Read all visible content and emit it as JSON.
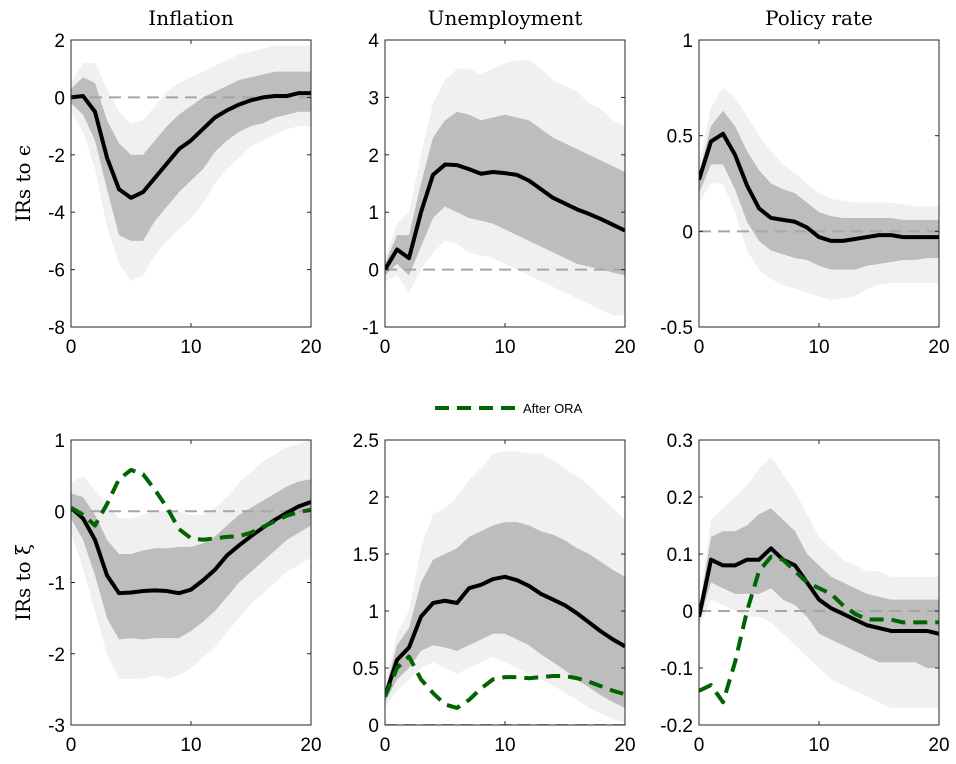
{
  "chart_data": [
    {
      "type": "line",
      "title": "Inflation",
      "ylabel": "IRs to ϵ",
      "x": [
        0,
        1,
        2,
        3,
        4,
        5,
        6,
        7,
        8,
        9,
        10,
        11,
        12,
        13,
        14,
        15,
        16,
        17,
        18,
        19,
        20
      ],
      "xlim": [
        0,
        20
      ],
      "xticks": [
        0,
        10,
        20
      ],
      "ylim": [
        -8,
        2
      ],
      "yticks": [
        -8,
        -6,
        -4,
        -2,
        0,
        2
      ],
      "hline": 0,
      "bands": [
        {
          "color": "#f0f0f0",
          "lower": [
            -0.5,
            -1.2,
            -2.5,
            -4.5,
            -5.8,
            -6.4,
            -6.2,
            -5.5,
            -5.0,
            -4.6,
            -4.2,
            -3.7,
            -3.0,
            -2.5,
            -2.1,
            -1.7,
            -1.5,
            -1.3,
            -1.1,
            -1.0,
            -1.0
          ],
          "upper": [
            0.5,
            1.2,
            1.2,
            0.3,
            -0.5,
            -0.9,
            -0.8,
            -0.3,
            0.2,
            0.5,
            0.7,
            0.9,
            1.1,
            1.3,
            1.5,
            1.6,
            1.7,
            1.8,
            1.8,
            1.8,
            1.8
          ]
        },
        {
          "color": "#bdbdbd",
          "lower": [
            -0.2,
            -0.6,
            -1.5,
            -3.2,
            -4.8,
            -5.0,
            -5.0,
            -4.3,
            -3.8,
            -3.3,
            -2.9,
            -2.5,
            -1.9,
            -1.5,
            -1.2,
            -1.0,
            -0.9,
            -0.7,
            -0.6,
            -0.5,
            -0.5
          ],
          "upper": [
            0.3,
            0.7,
            0.5,
            -0.8,
            -1.6,
            -2.0,
            -2.0,
            -1.5,
            -1.0,
            -0.6,
            -0.3,
            0,
            0.2,
            0.4,
            0.6,
            0.7,
            0.8,
            0.9,
            0.9,
            0.9,
            0.9
          ]
        }
      ],
      "series": [
        {
          "color": "#000000",
          "values": [
            0,
            0.05,
            -0.5,
            -2.1,
            -3.2,
            -3.5,
            -3.3,
            -2.8,
            -2.3,
            -1.8,
            -1.5,
            -1.1,
            -0.7,
            -0.45,
            -0.25,
            -0.1,
            0,
            0.05,
            0.05,
            0.15,
            0.15
          ]
        }
      ]
    },
    {
      "type": "line",
      "title": "Unemployment",
      "x": [
        0,
        1,
        2,
        3,
        4,
        5,
        6,
        7,
        8,
        9,
        10,
        11,
        12,
        13,
        14,
        15,
        16,
        17,
        18,
        19,
        20
      ],
      "xlim": [
        0,
        20
      ],
      "xticks": [
        0,
        10,
        20
      ],
      "ylim": [
        -1,
        4
      ],
      "yticks": [
        -1,
        0,
        1,
        2,
        3,
        4
      ],
      "hline": 0,
      "bands": [
        {
          "color": "#f0f0f0",
          "lower": [
            -0.2,
            -0.1,
            -0.4,
            0,
            0.3,
            0.5,
            0.45,
            0.3,
            0.25,
            0.2,
            0.1,
            0,
            -0.1,
            -0.2,
            -0.3,
            -0.4,
            -0.5,
            -0.6,
            -0.7,
            -0.8,
            -0.8
          ],
          "upper": [
            0.2,
            0.8,
            1.0,
            2.0,
            2.9,
            3.3,
            3.5,
            3.5,
            3.4,
            3.5,
            3.6,
            3.65,
            3.65,
            3.5,
            3.3,
            3.2,
            3.1,
            2.9,
            2.8,
            2.6,
            2.5
          ]
        },
        {
          "color": "#bdbdbd",
          "lower": [
            -0.1,
            0.1,
            -0.1,
            0.4,
            0.9,
            1.1,
            1.0,
            0.9,
            0.85,
            0.8,
            0.7,
            0.6,
            0.5,
            0.4,
            0.3,
            0.2,
            0.1,
            0.05,
            0,
            -0.05,
            -0.1
          ],
          "upper": [
            0.1,
            0.6,
            0.6,
            1.5,
            2.3,
            2.6,
            2.75,
            2.7,
            2.6,
            2.65,
            2.7,
            2.65,
            2.6,
            2.45,
            2.3,
            2.2,
            2.1,
            2.0,
            1.9,
            1.8,
            1.7
          ]
        }
      ],
      "series": [
        {
          "color": "#000000",
          "values": [
            0,
            0.35,
            0.2,
            1.0,
            1.65,
            1.83,
            1.82,
            1.75,
            1.67,
            1.7,
            1.68,
            1.65,
            1.55,
            1.4,
            1.25,
            1.15,
            1.05,
            0.97,
            0.88,
            0.78,
            0.68
          ]
        }
      ]
    },
    {
      "type": "line",
      "title": "Policy rate",
      "x": [
        0,
        1,
        2,
        3,
        4,
        5,
        6,
        7,
        8,
        9,
        10,
        11,
        12,
        13,
        14,
        15,
        16,
        17,
        18,
        19,
        20
      ],
      "xlim": [
        0,
        20
      ],
      "xticks": [
        0,
        10,
        20
      ],
      "ylim": [
        -0.5,
        1
      ],
      "yticks": [
        -0.5,
        0,
        0.5,
        1
      ],
      "hline": 0,
      "bands": [
        {
          "color": "#f0f0f0",
          "lower": [
            0.15,
            0.25,
            0.25,
            0.1,
            -0.1,
            -0.2,
            -0.25,
            -0.28,
            -0.3,
            -0.32,
            -0.34,
            -0.36,
            -0.35,
            -0.34,
            -0.3,
            -0.28,
            -0.27,
            -0.27,
            -0.27,
            -0.27,
            -0.27
          ],
          "upper": [
            0.35,
            0.65,
            0.75,
            0.7,
            0.6,
            0.5,
            0.42,
            0.35,
            0.3,
            0.25,
            0.2,
            0.17,
            0.16,
            0.15,
            0.15,
            0.15,
            0.15,
            0.14,
            0.13,
            0.13,
            0.13
          ]
        },
        {
          "color": "#bdbdbd",
          "lower": [
            0.2,
            0.35,
            0.35,
            0.22,
            0.05,
            -0.05,
            -0.1,
            -0.12,
            -0.14,
            -0.15,
            -0.18,
            -0.2,
            -0.2,
            -0.2,
            -0.18,
            -0.17,
            -0.16,
            -0.15,
            -0.15,
            -0.14,
            -0.14
          ],
          "upper": [
            0.3,
            0.55,
            0.63,
            0.55,
            0.42,
            0.32,
            0.25,
            0.22,
            0.2,
            0.15,
            0.1,
            0.08,
            0.07,
            0.07,
            0.07,
            0.07,
            0.07,
            0.06,
            0.06,
            0.06,
            0.06
          ]
        }
      ],
      "series": [
        {
          "color": "#000000",
          "values": [
            0.27,
            0.47,
            0.51,
            0.4,
            0.24,
            0.12,
            0.07,
            0.06,
            0.05,
            0.02,
            -0.03,
            -0.05,
            -0.05,
            -0.04,
            -0.03,
            -0.02,
            -0.02,
            -0.03,
            -0.03,
            -0.03,
            -0.03
          ]
        }
      ]
    },
    {
      "type": "line",
      "ylabel": "IRs to ξ",
      "x": [
        0,
        1,
        2,
        3,
        4,
        5,
        6,
        7,
        8,
        9,
        10,
        11,
        12,
        13,
        14,
        15,
        16,
        17,
        18,
        19,
        20
      ],
      "xlim": [
        0,
        20
      ],
      "xticks": [
        0,
        10,
        20
      ],
      "ylim": [
        -3,
        1
      ],
      "yticks": [
        -3,
        -2,
        -1,
        0,
        1
      ],
      "hline": 0,
      "bands": [
        {
          "color": "#f0f0f0",
          "lower": [
            -0.3,
            -0.8,
            -1.4,
            -2.0,
            -2.35,
            -2.35,
            -2.35,
            -2.3,
            -2.35,
            -2.3,
            -2.2,
            -2.05,
            -1.9,
            -1.7,
            -1.5,
            -1.3,
            -1.15,
            -1.0,
            -0.85,
            -0.75,
            -0.65
          ],
          "upper": [
            0.4,
            0.5,
            0.3,
            0.1,
            -0.1,
            -0.1,
            -0.05,
            0,
            0,
            0,
            -0.05,
            -0.05,
            0.05,
            0.2,
            0.4,
            0.55,
            0.7,
            0.8,
            0.9,
            0.95,
            1.0
          ]
        },
        {
          "color": "#bdbdbd",
          "lower": [
            -0.1,
            -0.4,
            -0.9,
            -1.5,
            -1.8,
            -1.78,
            -1.8,
            -1.78,
            -1.78,
            -1.78,
            -1.68,
            -1.55,
            -1.4,
            -1.2,
            -1.0,
            -0.85,
            -0.7,
            -0.55,
            -0.4,
            -0.3,
            -0.2
          ],
          "upper": [
            0.25,
            0.2,
            -0.05,
            -0.4,
            -0.6,
            -0.6,
            -0.55,
            -0.52,
            -0.52,
            -0.5,
            -0.5,
            -0.45,
            -0.35,
            -0.2,
            -0.05,
            0.05,
            0.15,
            0.25,
            0.35,
            0.42,
            0.45
          ]
        }
      ],
      "series": [
        {
          "color": "#000000",
          "values": [
            0.05,
            -0.1,
            -0.4,
            -0.9,
            -1.15,
            -1.14,
            -1.12,
            -1.11,
            -1.12,
            -1.15,
            -1.1,
            -0.97,
            -0.82,
            -0.62,
            -0.48,
            -0.35,
            -0.23,
            -0.12,
            -0.02,
            0.07,
            0.13
          ]
        },
        {
          "color": "#006400",
          "dashed": true,
          "values": [
            0.05,
            -0.05,
            -0.2,
            0.1,
            0.45,
            0.58,
            0.52,
            0.3,
            0.05,
            -0.25,
            -0.38,
            -0.4,
            -0.38,
            -0.36,
            -0.35,
            -0.3,
            -0.22,
            -0.14,
            -0.06,
            -0.01,
            0.02
          ]
        }
      ]
    },
    {
      "type": "line",
      "x": [
        0,
        1,
        2,
        3,
        4,
        5,
        6,
        7,
        8,
        9,
        10,
        11,
        12,
        13,
        14,
        15,
        16,
        17,
        18,
        19,
        20
      ],
      "xlim": [
        0,
        20
      ],
      "xticks": [
        0,
        10,
        20
      ],
      "ylim": [
        0,
        2.5
      ],
      "yticks": [
        0,
        0.5,
        1,
        1.5,
        2,
        2.5
      ],
      "hline": 0,
      "bands": [
        {
          "color": "#f0f0f0",
          "lower": [
            0.15,
            0.3,
            0.4,
            0.5,
            0.55,
            0.5,
            0.45,
            0.5,
            0.55,
            0.6,
            0.55,
            0.5,
            0.45,
            0.4,
            0.35,
            0.28,
            0.22,
            0.15,
            0.1,
            0.05,
            0.02
          ],
          "upper": [
            0.35,
            0.8,
            1.0,
            1.55,
            1.85,
            1.9,
            2.0,
            2.15,
            2.25,
            2.38,
            2.4,
            2.4,
            2.38,
            2.38,
            2.32,
            2.25,
            2.18,
            2.1,
            2.0,
            1.9,
            1.8
          ]
        },
        {
          "color": "#bdbdbd",
          "lower": [
            0.2,
            0.4,
            0.5,
            0.65,
            0.7,
            0.68,
            0.65,
            0.7,
            0.75,
            0.8,
            0.8,
            0.75,
            0.7,
            0.62,
            0.55,
            0.48,
            0.4,
            0.33,
            0.26,
            0.2,
            0.15
          ],
          "upper": [
            0.3,
            0.7,
            0.85,
            1.25,
            1.45,
            1.5,
            1.55,
            1.65,
            1.7,
            1.75,
            1.78,
            1.78,
            1.75,
            1.7,
            1.67,
            1.62,
            1.55,
            1.5,
            1.43,
            1.36,
            1.3
          ]
        }
      ],
      "series": [
        {
          "color": "#000000",
          "values": [
            0.25,
            0.57,
            0.68,
            0.95,
            1.07,
            1.09,
            1.07,
            1.2,
            1.23,
            1.28,
            1.3,
            1.27,
            1.22,
            1.15,
            1.1,
            1.05,
            0.98,
            0.9,
            0.82,
            0.75,
            0.69
          ]
        },
        {
          "name": "After ORA",
          "color": "#006400",
          "dashed": true,
          "values": [
            0.25,
            0.5,
            0.6,
            0.4,
            0.28,
            0.18,
            0.15,
            0.22,
            0.32,
            0.4,
            0.42,
            0.42,
            0.41,
            0.42,
            0.43,
            0.43,
            0.41,
            0.38,
            0.34,
            0.3,
            0.27
          ]
        }
      ]
    },
    {
      "type": "line",
      "x": [
        0,
        1,
        2,
        3,
        4,
        5,
        6,
        7,
        8,
        9,
        10,
        11,
        12,
        13,
        14,
        15,
        16,
        17,
        18,
        19,
        20
      ],
      "xlim": [
        0,
        20
      ],
      "xticks": [
        0,
        10,
        20
      ],
      "ylim": [
        -0.2,
        0.3
      ],
      "yticks": [
        -0.2,
        -0.1,
        0,
        0.1,
        0.2,
        0.3
      ],
      "hline": 0,
      "bands": [
        {
          "color": "#f0f0f0",
          "lower": [
            -0.03,
            0.02,
            0.01,
            0,
            -0.01,
            -0.01,
            -0.02,
            -0.04,
            -0.06,
            -0.08,
            -0.1,
            -0.12,
            -0.13,
            -0.14,
            -0.15,
            -0.16,
            -0.17,
            -0.17,
            -0.17,
            -0.17,
            -0.17
          ],
          "upper": [
            0.01,
            0.16,
            0.18,
            0.2,
            0.22,
            0.25,
            0.27,
            0.24,
            0.21,
            0.17,
            0.13,
            0.11,
            0.09,
            0.08,
            0.07,
            0.07,
            0.06,
            0.06,
            0.06,
            0.06,
            0.06
          ]
        },
        {
          "color": "#bdbdbd",
          "lower": [
            -0.02,
            0.05,
            0.04,
            0.03,
            0.03,
            0.03,
            0.04,
            0.02,
            0.01,
            -0.01,
            -0.04,
            -0.05,
            -0.06,
            -0.07,
            -0.08,
            -0.09,
            -0.09,
            -0.09,
            -0.09,
            -0.1,
            -0.1
          ],
          "upper": [
            0,
            0.13,
            0.14,
            0.14,
            0.15,
            0.17,
            0.18,
            0.16,
            0.14,
            0.1,
            0.08,
            0.06,
            0.05,
            0.04,
            0.03,
            0.025,
            0.02,
            0.02,
            0.02,
            0.02,
            0.02
          ]
        }
      ],
      "series": [
        {
          "color": "#000000",
          "values": [
            -0.01,
            0.09,
            0.08,
            0.08,
            0.09,
            0.09,
            0.11,
            0.09,
            0.08,
            0.05,
            0.02,
            0.005,
            -0.005,
            -0.015,
            -0.025,
            -0.03,
            -0.035,
            -0.035,
            -0.035,
            -0.035,
            -0.04
          ]
        },
        {
          "color": "#006400",
          "dashed": true,
          "values": [
            -0.14,
            -0.13,
            -0.16,
            -0.09,
            0,
            0.07,
            0.095,
            0.09,
            0.07,
            0.05,
            0.04,
            0.03,
            0.01,
            -0.005,
            -0.015,
            -0.015,
            -0.015,
            -0.02,
            -0.02,
            -0.02,
            -0.02
          ]
        }
      ]
    }
  ]
}
